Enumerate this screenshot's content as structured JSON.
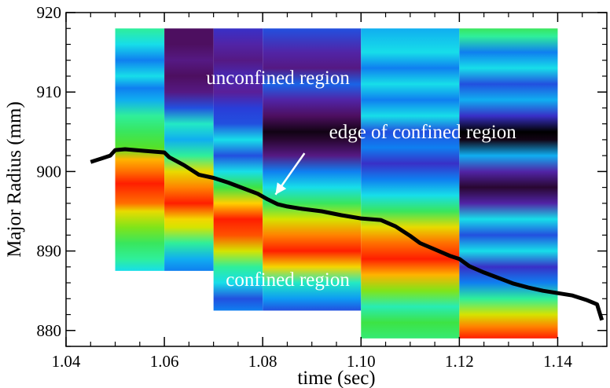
{
  "chart_data": {
    "type": "heatmap",
    "title": "",
    "xlabel": "time (sec)",
    "ylabel": "Major Radius (mm)",
    "xlim": [
      1.04,
      1.15
    ],
    "ylim": [
      878,
      920
    ],
    "x_ticks": [
      "1.04",
      "1.06",
      "1.08",
      "1.10",
      "1.12",
      "1.14"
    ],
    "y_ticks": [
      "880",
      "890",
      "900",
      "910",
      "920"
    ],
    "colormap": [
      "#000000",
      "#4b0d59",
      "#5a1f9a",
      "#2c36d6",
      "#0a8cf5",
      "#18e2e8",
      "#2ef0a0",
      "#40e030",
      "#c8e800",
      "#ffd200",
      "#ff7a00",
      "#ff1e00"
    ],
    "panels": [
      {
        "t0": 1.05,
        "t1": 1.06,
        "r_min": 887.5,
        "r_max": 918,
        "profile": [
          [
            887.5,
            0.45
          ],
          [
            889,
            0.55
          ],
          [
            891,
            0.6
          ],
          [
            893,
            0.68
          ],
          [
            895,
            0.78
          ],
          [
            896,
            0.92
          ],
          [
            898.5,
            1.0
          ],
          [
            900,
            0.92
          ],
          [
            901.5,
            0.85
          ],
          [
            903,
            0.65
          ],
          [
            905,
            0.6
          ],
          [
            907,
            0.55
          ],
          [
            909,
            0.4
          ],
          [
            910.5,
            0.35
          ],
          [
            912,
            0.45
          ],
          [
            914,
            0.35
          ],
          [
            916,
            0.45
          ],
          [
            918,
            0.55
          ]
        ]
      },
      {
        "t0": 1.06,
        "t1": 1.07,
        "r_min": 887.5,
        "r_max": 918,
        "profile": [
          [
            887.5,
            0.35
          ],
          [
            889,
            0.4
          ],
          [
            891,
            0.55
          ],
          [
            893,
            0.75
          ],
          [
            894,
            0.8
          ],
          [
            896,
            1.0
          ],
          [
            898,
            0.9
          ],
          [
            900,
            0.78
          ],
          [
            902,
            0.55
          ],
          [
            904,
            0.4
          ],
          [
            906,
            0.5
          ],
          [
            908,
            0.3
          ],
          [
            910,
            0.15
          ],
          [
            912,
            0.1
          ],
          [
            914,
            0.15
          ],
          [
            916,
            0.1
          ],
          [
            918,
            0.1
          ]
        ]
      },
      {
        "t0": 1.07,
        "t1": 1.08,
        "r_min": 882.5,
        "r_max": 918,
        "profile": [
          [
            882.5,
            0.35
          ],
          [
            884,
            0.3
          ],
          [
            886,
            0.45
          ],
          [
            888,
            0.55
          ],
          [
            890,
            0.75
          ],
          [
            892,
            0.95
          ],
          [
            894,
            1.0
          ],
          [
            896,
            0.82
          ],
          [
            898,
            0.62
          ],
          [
            900,
            0.45
          ],
          [
            902,
            0.3
          ],
          [
            904,
            0.45
          ],
          [
            906,
            0.3
          ],
          [
            908,
            0.28
          ],
          [
            910,
            0.18
          ],
          [
            912,
            0.22
          ],
          [
            914,
            0.15
          ],
          [
            916,
            0.2
          ],
          [
            918,
            0.25
          ]
        ]
      },
      {
        "t0": 1.08,
        "t1": 1.1,
        "r_min": 882.5,
        "r_max": 918,
        "profile": [
          [
            882.5,
            0.3
          ],
          [
            884,
            0.38
          ],
          [
            886,
            0.5
          ],
          [
            888,
            0.8
          ],
          [
            890,
            1.0
          ],
          [
            892,
            0.9
          ],
          [
            894,
            0.75
          ],
          [
            896,
            0.6
          ],
          [
            898,
            0.45
          ],
          [
            900,
            0.35
          ],
          [
            902,
            0.15
          ],
          [
            904,
            0.05
          ],
          [
            905,
            0.02
          ],
          [
            907,
            0.1
          ],
          [
            909,
            0.2
          ],
          [
            911,
            0.32
          ],
          [
            913,
            0.15
          ],
          [
            915,
            0.2
          ],
          [
            918,
            0.3
          ]
        ]
      },
      {
        "t0": 1.1,
        "t1": 1.12,
        "r_min": 879,
        "r_max": 918,
        "profile": [
          [
            879,
            0.58
          ],
          [
            881,
            0.62
          ],
          [
            883,
            0.52
          ],
          [
            885,
            0.68
          ],
          [
            887,
            0.85
          ],
          [
            889,
            1.0
          ],
          [
            891,
            0.92
          ],
          [
            893,
            0.78
          ],
          [
            895,
            0.6
          ],
          [
            897,
            0.45
          ],
          [
            899,
            0.35
          ],
          [
            901,
            0.25
          ],
          [
            903,
            0.35
          ],
          [
            905,
            0.3
          ],
          [
            907,
            0.45
          ],
          [
            909,
            0.35
          ],
          [
            911,
            0.45
          ],
          [
            913,
            0.35
          ],
          [
            915,
            0.45
          ],
          [
            918,
            0.4
          ]
        ]
      },
      {
        "t0": 1.12,
        "t1": 1.14,
        "r_min": 879,
        "r_max": 918,
        "profile": [
          [
            879,
            1.0
          ],
          [
            880.5,
            0.9
          ],
          [
            882,
            0.75
          ],
          [
            884,
            0.55
          ],
          [
            886,
            0.35
          ],
          [
            888,
            0.25
          ],
          [
            890,
            0.45
          ],
          [
            892,
            0.3
          ],
          [
            894,
            0.45
          ],
          [
            896,
            0.2
          ],
          [
            898,
            0.05
          ],
          [
            900,
            0.2
          ],
          [
            902,
            0.4
          ],
          [
            904,
            0.02
          ],
          [
            905,
            0.0
          ],
          [
            907,
            0.25
          ],
          [
            909,
            0.4
          ],
          [
            911,
            0.3
          ],
          [
            913,
            0.45
          ],
          [
            915,
            0.35
          ],
          [
            917,
            0.55
          ],
          [
            918,
            0.6
          ]
        ]
      }
    ],
    "edge_line": {
      "x": [
        1.045,
        1.047,
        1.049,
        1.05,
        1.052,
        1.056,
        1.06,
        1.061,
        1.064,
        1.067,
        1.07,
        1.073,
        1.076,
        1.079,
        1.081,
        1.083,
        1.085,
        1.088,
        1.092,
        1.096,
        1.1,
        1.104,
        1.107,
        1.11,
        1.112,
        1.115,
        1.118,
        1.12,
        1.122,
        1.125,
        1.128,
        1.131,
        1.134,
        1.137,
        1.14,
        1.143,
        1.146,
        1.148,
        1.149
      ],
      "y": [
        901.2,
        901.6,
        902.0,
        902.7,
        902.8,
        902.6,
        902.4,
        901.8,
        900.8,
        899.6,
        899.2,
        898.6,
        897.9,
        897.2,
        896.5,
        895.9,
        895.6,
        895.3,
        895.0,
        894.5,
        894.1,
        893.9,
        893.1,
        891.9,
        891.0,
        890.2,
        889.4,
        889.0,
        888.1,
        887.3,
        886.6,
        885.9,
        885.4,
        885.0,
        884.7,
        884.4,
        883.8,
        883.3,
        881.3
      ]
    },
    "annotations": [
      {
        "text": "unconfined region",
        "x": 1.0685,
        "y": 911.0
      },
      {
        "text": "edge of confined region",
        "x": 1.0935,
        "y": 904.2
      },
      {
        "text": "confined region",
        "x": 1.0725,
        "y": 885.6
      }
    ],
    "arrow": {
      "from": [
        1.0885,
        902.3
      ],
      "to": [
        1.0826,
        897.1
      ]
    },
    "grid": false
  }
}
